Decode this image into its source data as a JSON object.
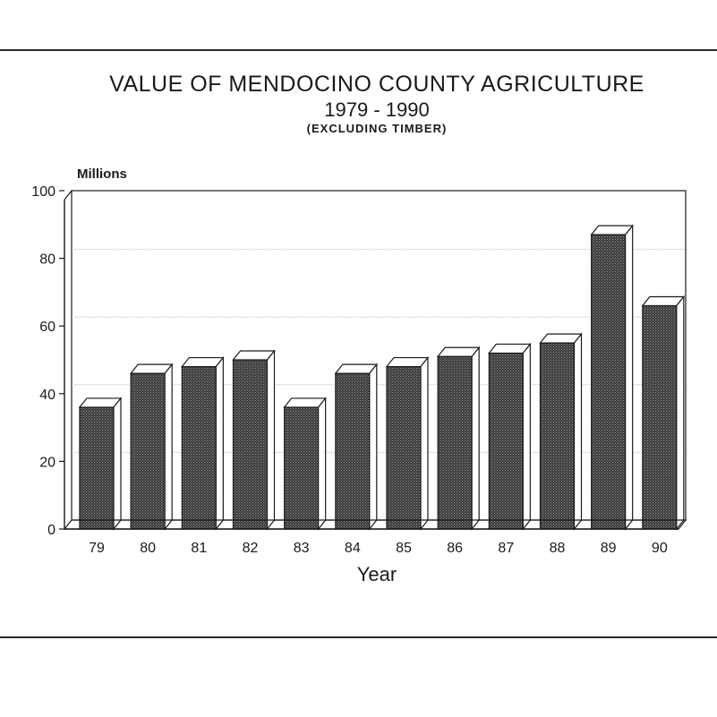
{
  "chart_data": {
    "type": "bar",
    "title": "VALUE OF MENDOCINO COUNTY AGRICULTURE",
    "subtitle": "1979 - 1990",
    "note": "(EXCLUDING TIMBER)",
    "ylabel": "Millions",
    "xlabel": "Year",
    "categories": [
      "79",
      "80",
      "81",
      "82",
      "83",
      "84",
      "85",
      "86",
      "87",
      "88",
      "89",
      "90"
    ],
    "values": [
      36,
      46,
      48,
      50,
      36,
      46,
      48,
      51,
      52,
      55,
      87,
      66
    ],
    "ylim": [
      0,
      100
    ],
    "yticks": [
      0,
      20,
      40,
      60,
      80,
      100
    ],
    "grid": true,
    "colors": {
      "bar_front": "#3d3d3d",
      "bar_top": "#ffffff",
      "bar_side": "#ffffff",
      "axis": "#1a1a1a",
      "grid": "#bdbdbd"
    }
  }
}
